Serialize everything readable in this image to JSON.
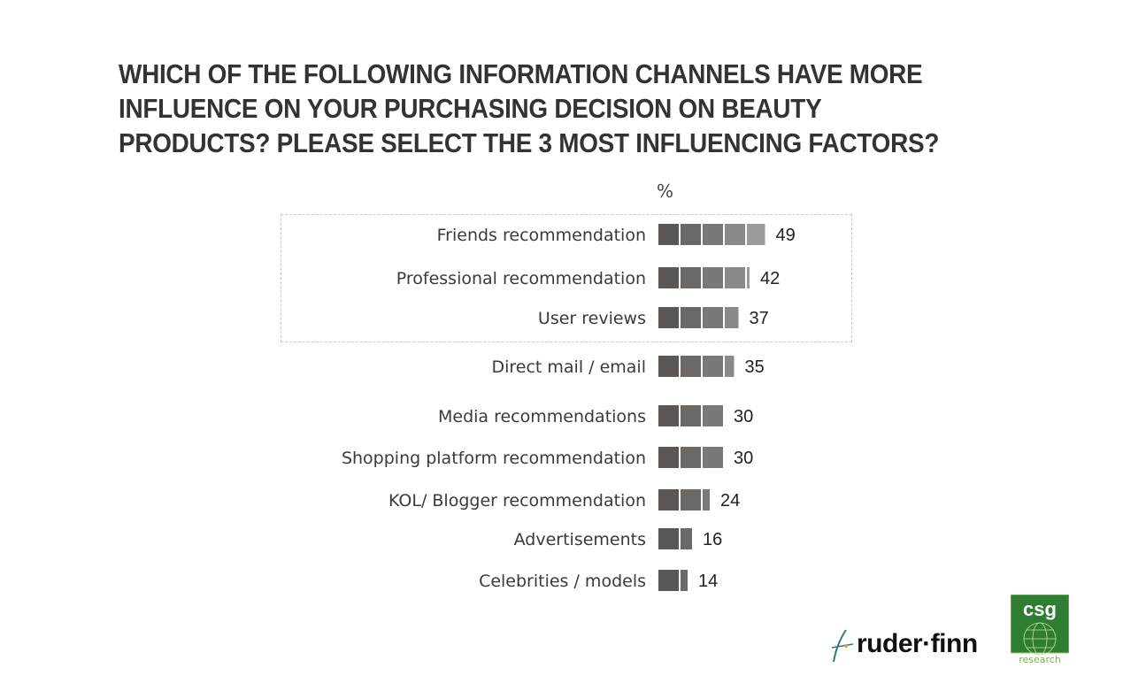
{
  "title": "WHICH OF THE FOLLOWING INFORMATION CHANNELS HAVE MORE INFLUENCE ON YOUR PURCHASING DECISION ON BEAUTY PRODUCTS? PLEASE SELECT THE 3 MOST INFLUENCING FACTORS?",
  "unit_label": "%",
  "chart_data": {
    "type": "bar",
    "orientation": "horizontal",
    "title": "WHICH OF THE FOLLOWING INFORMATION CHANNELS HAVE MORE INFLUENCE ON YOUR PURCHASING DECISION ON BEAUTY PRODUCTS? PLEASE SELECT THE 3 MOST INFLUENCING FACTORS?",
    "xlabel": "%",
    "ylabel": "",
    "categories": [
      "Friends recommendation",
      "Professional recommendation",
      "User reviews",
      "Direct mail / email",
      "Media recommendations",
      "Shopping platform recommendation",
      "KOL/ Blogger recommendation",
      "Advertisements",
      "Celebrities / models"
    ],
    "values": [
      49,
      42,
      37,
      35,
      30,
      30,
      24,
      16,
      14
    ],
    "highlighted_top": 3,
    "segment_colors": [
      "#5b5754",
      "#6b6866",
      "#7a7876",
      "#8b8987",
      "#9d9b9a"
    ],
    "grid": false,
    "legend": "none"
  },
  "logos": {
    "ruder_finn": "ruder·finn",
    "csg": "csg",
    "csg_sub": "research"
  }
}
